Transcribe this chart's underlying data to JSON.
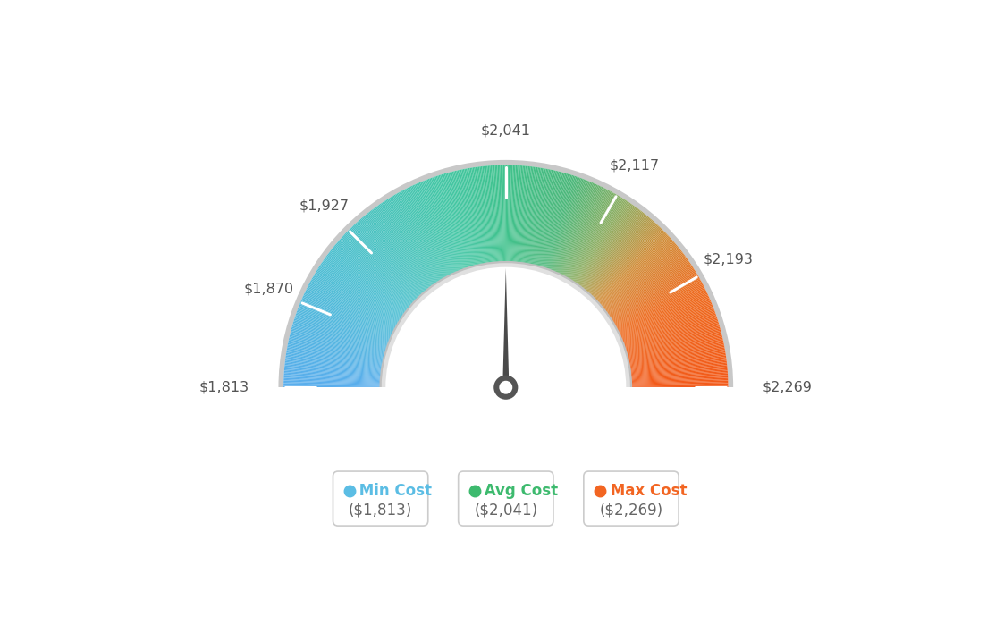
{
  "min_val": 1813,
  "max_val": 2269,
  "avg_val": 2041,
  "tick_values": [
    1813,
    1870,
    1927,
    2041,
    2117,
    2193,
    2269
  ],
  "tick_labels": [
    "$1,813",
    "$1,870",
    "$1,927",
    "$2,041",
    "$2,117",
    "$2,193",
    "$2,269"
  ],
  "legend_labels": [
    "Min Cost",
    "Avg Cost",
    "Max Cost"
  ],
  "legend_values": [
    "($1,813)",
    "($2,041)",
    "($2,269)"
  ],
  "legend_colors": [
    "#5bbde4",
    "#3dba6e",
    "#f26522"
  ],
  "bg_color": "#ffffff",
  "needle_value": 2041,
  "color_stops": [
    [
      0.0,
      [
        0.35,
        0.68,
        0.93
      ]
    ],
    [
      0.2,
      [
        0.3,
        0.75,
        0.82
      ]
    ],
    [
      0.4,
      [
        0.27,
        0.78,
        0.65
      ]
    ],
    [
      0.5,
      [
        0.25,
        0.76,
        0.55
      ]
    ],
    [
      0.6,
      [
        0.3,
        0.72,
        0.48
      ]
    ],
    [
      0.68,
      [
        0.55,
        0.68,
        0.38
      ]
    ],
    [
      0.76,
      [
        0.82,
        0.55,
        0.22
      ]
    ],
    [
      0.85,
      [
        0.93,
        0.42,
        0.12
      ]
    ],
    [
      1.0,
      [
        0.95,
        0.35,
        0.1
      ]
    ]
  ]
}
